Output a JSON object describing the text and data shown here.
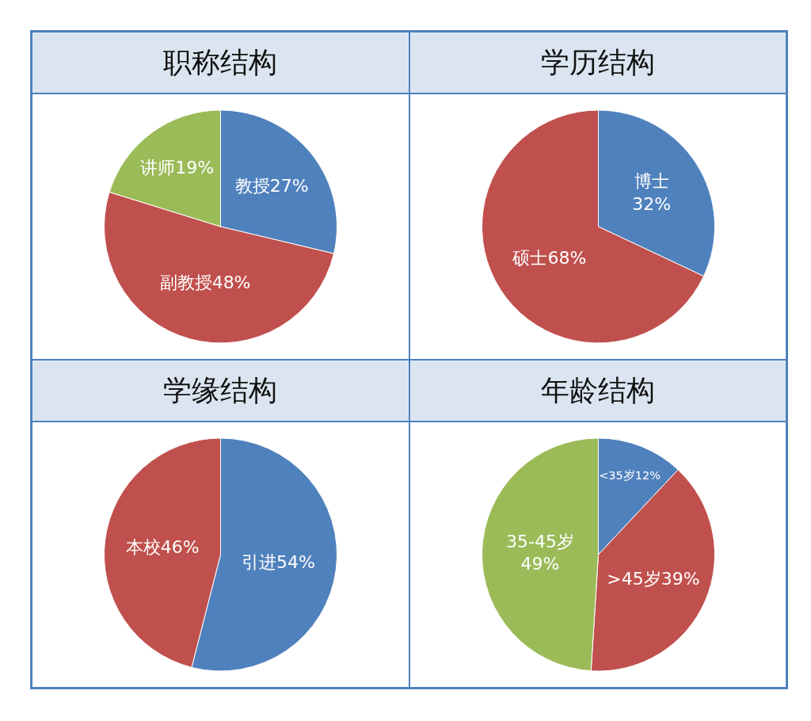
{
  "chart_data": [
    {
      "type": "pie",
      "title": "职称结构",
      "categories": [
        "教授",
        "副教授",
        "讲师"
      ],
      "values": [
        27,
        48,
        19
      ],
      "colors": [
        "#4f81bd",
        "#c0504d",
        "#9bbb59"
      ],
      "value_labels": [
        "27%",
        "48%",
        "19%"
      ]
    },
    {
      "type": "pie",
      "title": "学历结构",
      "categories": [
        "博士",
        "硕士"
      ],
      "values": [
        32,
        68
      ],
      "colors": [
        "#4f81bd",
        "#c0504d"
      ],
      "value_labels": [
        "\n32%",
        "68%"
      ]
    },
    {
      "type": "pie",
      "title": "学缘结构",
      "categories": [
        "引进",
        "本校"
      ],
      "values": [
        54,
        46
      ],
      "colors": [
        "#4f81bd",
        "#c0504d"
      ],
      "value_labels": [
        "54%",
        "46%"
      ]
    },
    {
      "type": "pie",
      "title": "年龄结构",
      "categories": [
        "<35岁",
        ">45岁",
        "35-45岁"
      ],
      "values": [
        12,
        39,
        49
      ],
      "colors": [
        "#4f81bd",
        "#c0504d",
        "#9bbb59"
      ],
      "value_labels": [
        "12%",
        "39%",
        "\n49%"
      ]
    }
  ]
}
